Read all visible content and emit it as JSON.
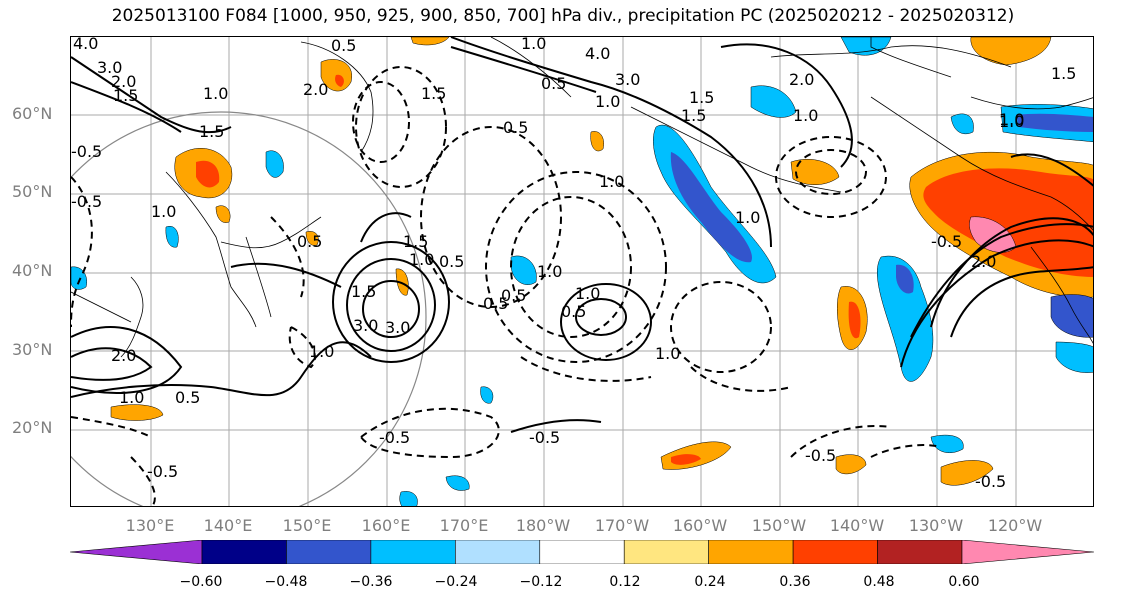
{
  "title": "2025013100 F084 [1000, 950, 925, 900, 850, 700] hPa div., precipitation PC (2025020212 - 2025020312)",
  "lat_labels": [
    "60°N",
    "50°N",
    "40°N",
    "30°N",
    "20°N"
  ],
  "lon_labels": [
    "130°E",
    "140°E",
    "150°E",
    "160°E",
    "170°E",
    "180°W",
    "170°W",
    "160°W",
    "150°W",
    "140°W",
    "130°W",
    "120°W"
  ],
  "colorbar": {
    "colors": [
      "#9b30d4",
      "#000088",
      "#3355cc",
      "#00bfff",
      "#b0e0ff",
      "#ffffff",
      "#ffe680",
      "#ffa500",
      "#ff4000",
      "#b22222",
      "#ff88b0"
    ],
    "tick_labels": [
      "−0.60",
      "−0.48",
      "−0.36",
      "−0.24",
      "−0.12",
      "0.12",
      "0.24",
      "0.36",
      "0.48",
      "0.60"
    ]
  },
  "contour_labels": [
    "4.0",
    "3.0",
    "2.0",
    "1.5",
    "1.0",
    "0.5",
    "1.5",
    "1.0",
    "0.5",
    "2.0",
    "1.5",
    "1.0",
    "0.5",
    "4.0",
    "3.0",
    "0.5",
    "1.0",
    "1.5",
    "2.0",
    "1.0",
    "1.5",
    "1.0",
    "-0.5",
    "1.0",
    "1.5",
    "0.5",
    "1.0",
    "1.0",
    "3.0",
    "1.5",
    "3.0",
    "1.0",
    "0.5",
    "1.0",
    "0.5",
    "1.0",
    "2.0",
    "1.0",
    "0.5",
    "-0.5",
    "-0.5",
    "-0.5",
    "-0.5",
    "-0.5",
    "1.0",
    "2.0",
    "-0.5",
    "1.0",
    "-0.5",
    "0.5",
    "1.5"
  ]
}
